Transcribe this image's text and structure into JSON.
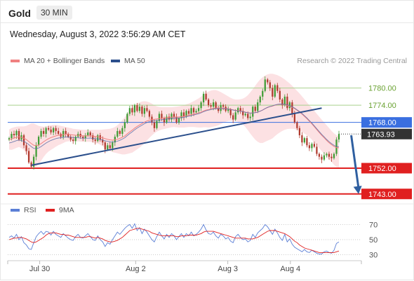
{
  "header": {
    "title": "Gold",
    "timeframe": "30 MIN",
    "timestamp": "Wednesday, August 3, 2022 3:56:29 AM CET"
  },
  "legend": {
    "ma20": {
      "label": "MA 20 + Bollinger Bands",
      "color": "#f08080"
    },
    "ma50": {
      "label": "MA 50",
      "color": "#2b4f8c"
    }
  },
  "credit": "Research © 2022 Trading Central",
  "rsi_legend": {
    "rsi": {
      "label": "RSI",
      "color": "#5b7fd6"
    },
    "ma9": {
      "label": "9MA",
      "color": "#e02020"
    }
  },
  "chart_data": [
    {
      "type": "candlestick",
      "x_ticks": [
        "Jul 30",
        "Aug 2",
        "Aug 3",
        "Aug 4"
      ],
      "ylim": [
        1740,
        1788
      ],
      "levels": [
        {
          "label": "1780.00",
          "value": 1780,
          "style": "resistance",
          "color": "#6aa232"
        },
        {
          "label": "1774.00",
          "value": 1774,
          "style": "resistance",
          "color": "#6aa232"
        },
        {
          "label": "1768.00",
          "value": 1768,
          "style": "pivot",
          "color": "#3a6fe0"
        },
        {
          "label": "1763.93",
          "value": 1763.93,
          "style": "last-price",
          "color": "#333333"
        },
        {
          "label": "1752.00",
          "value": 1752,
          "style": "support",
          "color": "#e02020"
        },
        {
          "label": "1743.00",
          "value": 1743,
          "style": "support",
          "color": "#e02020"
        }
      ],
      "close": [
        1762.5,
        1764,
        1763.5,
        1765,
        1762,
        1763.5,
        1760,
        1758,
        1754,
        1752.5,
        1756,
        1760,
        1763,
        1765,
        1764,
        1766,
        1765.5,
        1764.5,
        1766,
        1765,
        1764,
        1763,
        1765,
        1764,
        1763,
        1762,
        1761.5,
        1763,
        1764,
        1763,
        1762.5,
        1763.5,
        1764.5,
        1763.5,
        1762,
        1761.5,
        1763.5,
        1762,
        1761,
        1758.5,
        1760,
        1759,
        1761,
        1763,
        1765,
        1764,
        1766,
        1768,
        1771,
        1773,
        1771.5,
        1774,
        1772,
        1773.5,
        1771,
        1773,
        1772,
        1770,
        1768,
        1766,
        1768.5,
        1771,
        1769.5,
        1768,
        1770,
        1769,
        1771,
        1770,
        1768,
        1769.5,
        1771.5,
        1770,
        1772,
        1771,
        1773,
        1771.5,
        1772,
        1773,
        1775,
        1778,
        1776,
        1774,
        1773.5,
        1775,
        1773,
        1772,
        1774,
        1773.5,
        1772,
        1772.5,
        1770.5,
        1769,
        1771.5,
        1773,
        1772,
        1770.5,
        1771,
        1769.5,
        1770,
        1773.5,
        1772,
        1775,
        1777,
        1779,
        1783,
        1782,
        1780,
        1777,
        1781,
        1779,
        1776,
        1774,
        1777,
        1773,
        1775,
        1771,
        1768,
        1766,
        1763.5,
        1761,
        1762.5,
        1760,
        1759,
        1760.5,
        1759.5,
        1757,
        1756,
        1755,
        1756.5,
        1757,
        1756,
        1755.5,
        1757,
        1762,
        1763.93
      ],
      "ma20": [
        1762,
        1762.2,
        1762.5,
        1762.8,
        1763,
        1762.8,
        1762.5,
        1762,
        1761.3,
        1760.6,
        1760,
        1759.9,
        1760.1,
        1760.6,
        1761.2,
        1761.8,
        1762.3,
        1762.7,
        1763,
        1763.3,
        1763.5,
        1763.6,
        1763.7,
        1763.8,
        1763.8,
        1763.7,
        1763.6,
        1763.5,
        1763.5,
        1763.4,
        1763.3,
        1763.3,
        1763.3,
        1763.3,
        1763.2,
        1763.1,
        1763,
        1762.8,
        1762.6,
        1762.3,
        1762.1,
        1761.9,
        1761.8,
        1761.9,
        1762.1,
        1762.4,
        1762.8,
        1763.3,
        1764,
        1764.7,
        1765.3,
        1766,
        1766.6,
        1767.1,
        1767.6,
        1768.1,
        1768.5,
        1768.8,
        1769,
        1769.1,
        1769.2,
        1769.3,
        1769.4,
        1769.5,
        1769.6,
        1769.7,
        1769.8,
        1769.9,
        1769.9,
        1769.9,
        1770,
        1770.1,
        1770.3,
        1770.5,
        1770.7,
        1770.9,
        1771.1,
        1771.3,
        1771.6,
        1772,
        1772.3,
        1772.5,
        1772.7,
        1772.9,
        1773,
        1773,
        1773,
        1773,
        1772.9,
        1772.8,
        1772.6,
        1772.4,
        1772.2,
        1772.1,
        1772,
        1771.8,
        1771.6,
        1771.4,
        1771.3,
        1771.3,
        1771.4,
        1771.6,
        1771.9,
        1772.3,
        1772.8,
        1773.2,
        1773.5,
        1773.7,
        1774,
        1774.2,
        1774.3,
        1774.3,
        1774.2,
        1774,
        1773.7,
        1773.3,
        1772.8,
        1772.2,
        1771.6,
        1770.9,
        1770.1,
        1769.3,
        1768.4,
        1767.5,
        1766.5,
        1765.5,
        1764.5,
        1763.5,
        1762.6,
        1761.7,
        1760.9,
        1760.2,
        1759.6,
        1759.2,
        1759.1
      ],
      "bb_upper": [
        1765.5,
        1766,
        1766.3,
        1766.5,
        1766.6,
        1766.6,
        1766.6,
        1766.8,
        1767.2,
        1767.6,
        1767.6,
        1767.2,
        1766.8,
        1766.6,
        1766.5,
        1766.6,
        1766.8,
        1767,
        1767.1,
        1767.1,
        1767,
        1766.8,
        1766.6,
        1766.4,
        1766.2,
        1766,
        1765.8,
        1765.7,
        1765.6,
        1765.5,
        1765.4,
        1765.4,
        1765.4,
        1765.4,
        1765.4,
        1765.4,
        1765.4,
        1765.4,
        1765.5,
        1765.6,
        1765.7,
        1765.8,
        1766,
        1766.4,
        1767,
        1767.8,
        1768.8,
        1769.8,
        1771,
        1772.2,
        1773.2,
        1774,
        1774.6,
        1775,
        1775.3,
        1775.4,
        1775.3,
        1775,
        1774.6,
        1774,
        1773.6,
        1773.4,
        1773.3,
        1773.3,
        1773.3,
        1773.3,
        1773.3,
        1773.4,
        1773.5,
        1773.6,
        1773.8,
        1774,
        1774.3,
        1774.6,
        1775,
        1775.4,
        1775.9,
        1776.4,
        1777,
        1777.7,
        1778.3,
        1778.8,
        1779.1,
        1779.3,
        1779.3,
        1779,
        1778.6,
        1778.1,
        1777.6,
        1777.1,
        1776.6,
        1776.2,
        1776,
        1776,
        1776.1,
        1776.3,
        1776.8,
        1777.5,
        1778.5,
        1779.6,
        1780.8,
        1782,
        1783,
        1783.8,
        1784.4,
        1784.8,
        1785,
        1785,
        1784.8,
        1784.5,
        1784.1,
        1783.6,
        1783,
        1782.3,
        1781.6,
        1780.8,
        1779.9,
        1779,
        1778.1,
        1777.1,
        1776.1,
        1775,
        1774,
        1773,
        1772,
        1771,
        1770,
        1769,
        1768,
        1767,
        1766,
        1765,
        1764.2,
        1763.5,
        1763
      ],
      "bb_lower": [
        1758.5,
        1758.4,
        1758.7,
        1759.1,
        1759.4,
        1759,
        1758.4,
        1757.2,
        1755.4,
        1753.6,
        1752.4,
        1752.6,
        1753.4,
        1754.6,
        1755.9,
        1757,
        1757.8,
        1758.4,
        1758.9,
        1759.5,
        1760,
        1760.4,
        1760.8,
        1761.2,
        1761.4,
        1761.4,
        1761.4,
        1761.3,
        1761.4,
        1761.3,
        1761.2,
        1761.2,
        1761.2,
        1761.2,
        1761,
        1760.8,
        1760.6,
        1760.2,
        1759.7,
        1759,
        1758.5,
        1758,
        1757.6,
        1757.4,
        1757.2,
        1757,
        1756.8,
        1756.8,
        1757,
        1757.2,
        1757.4,
        1758,
        1758.6,
        1759.2,
        1759.9,
        1760.8,
        1761.7,
        1762.6,
        1763.4,
        1764.2,
        1764.8,
        1765.2,
        1765.5,
        1765.7,
        1765.9,
        1766.1,
        1766.3,
        1766.4,
        1766.3,
        1766.2,
        1766.2,
        1766.2,
        1766.3,
        1766.4,
        1766.4,
        1766.4,
        1766.3,
        1766.2,
        1766.2,
        1766.3,
        1766.3,
        1766.2,
        1766.3,
        1766.5,
        1766.7,
        1767,
        1767.4,
        1767.9,
        1768.2,
        1768.5,
        1768.6,
        1768.6,
        1768.4,
        1768.2,
        1767.9,
        1767.3,
        1766.4,
        1765.3,
        1764.1,
        1763,
        1762,
        1761.2,
        1760.8,
        1760.8,
        1761.2,
        1761.6,
        1762,
        1762.4,
        1763.2,
        1763.9,
        1764.5,
        1765,
        1765.4,
        1765.7,
        1765.8,
        1765.8,
        1765.7,
        1765.4,
        1765.1,
        1764.7,
        1764.1,
        1763.5,
        1762.8,
        1762,
        1761,
        1760,
        1759,
        1758,
        1757,
        1756,
        1755,
        1754.2,
        1753.2,
        1752.4,
        1752.3
      ],
      "trendline": {
        "from": [
          9,
          1753
        ],
        "to": [
          127,
          1773
        ]
      },
      "forecast_arrow": {
        "from": [
          139,
          1763.5
        ],
        "to": [
          147,
          1743
        ]
      }
    },
    {
      "type": "line",
      "name": "RSI panel",
      "ylim": [
        25,
        75
      ],
      "y_ticks": [
        70,
        50,
        30
      ],
      "rsi": [
        53,
        55,
        52,
        57,
        50,
        54,
        46,
        43,
        38,
        37,
        46,
        54,
        58,
        61,
        57,
        61,
        60,
        56,
        61,
        57,
        55,
        53,
        58,
        55,
        52,
        50,
        49,
        54,
        57,
        53,
        52,
        55,
        58,
        54,
        50,
        49,
        55,
        50,
        47,
        41,
        46,
        44,
        50,
        55,
        60,
        57,
        61,
        65,
        68,
        70,
        65,
        71,
        62,
        66,
        58,
        64,
        60,
        55,
        50,
        47,
        54,
        60,
        55,
        51,
        57,
        53,
        58,
        55,
        50,
        54,
        58,
        53,
        58,
        55,
        60,
        55,
        57,
        60,
        64,
        70,
        63,
        58,
        57,
        60,
        55,
        52,
        57,
        55,
        51,
        53,
        48,
        46,
        54,
        57,
        53,
        50,
        51,
        47,
        49,
        57,
        53,
        59,
        62,
        65,
        70,
        67,
        62,
        57,
        64,
        59,
        53,
        49,
        57,
        47,
        51,
        44,
        40,
        38,
        36,
        34,
        37,
        34,
        33,
        36,
        34,
        32,
        31,
        31,
        34,
        35,
        33,
        32,
        36,
        45,
        47
      ],
      "ma9": [
        50,
        51,
        52,
        52,
        53,
        53,
        52,
        51,
        49,
        47,
        46,
        47,
        49,
        51,
        53,
        56,
        58,
        59,
        59,
        59,
        58,
        57,
        57,
        56,
        56,
        55,
        54,
        53,
        53,
        53,
        53,
        53,
        54,
        54,
        53,
        52,
        53,
        52,
        51,
        49,
        48,
        47,
        47,
        48,
        49,
        51,
        53,
        56,
        59,
        62,
        63,
        64,
        65,
        65,
        64,
        63,
        62,
        61,
        59,
        58,
        57,
        56,
        55,
        55,
        55,
        55,
        55,
        55,
        54,
        54,
        55,
        55,
        55,
        56,
        56,
        56,
        56,
        57,
        58,
        60,
        61,
        61,
        61,
        61,
        60,
        59,
        58,
        57,
        56,
        55,
        54,
        53,
        52,
        52,
        52,
        52,
        52,
        51,
        51,
        51,
        52,
        53,
        55,
        57,
        59,
        61,
        62,
        62,
        62,
        61,
        60,
        59,
        58,
        56,
        54,
        51,
        48,
        46,
        43,
        41,
        39,
        38,
        37,
        36,
        35,
        34,
        33,
        33,
        33,
        33,
        33,
        33,
        33,
        34,
        35
      ]
    }
  ]
}
